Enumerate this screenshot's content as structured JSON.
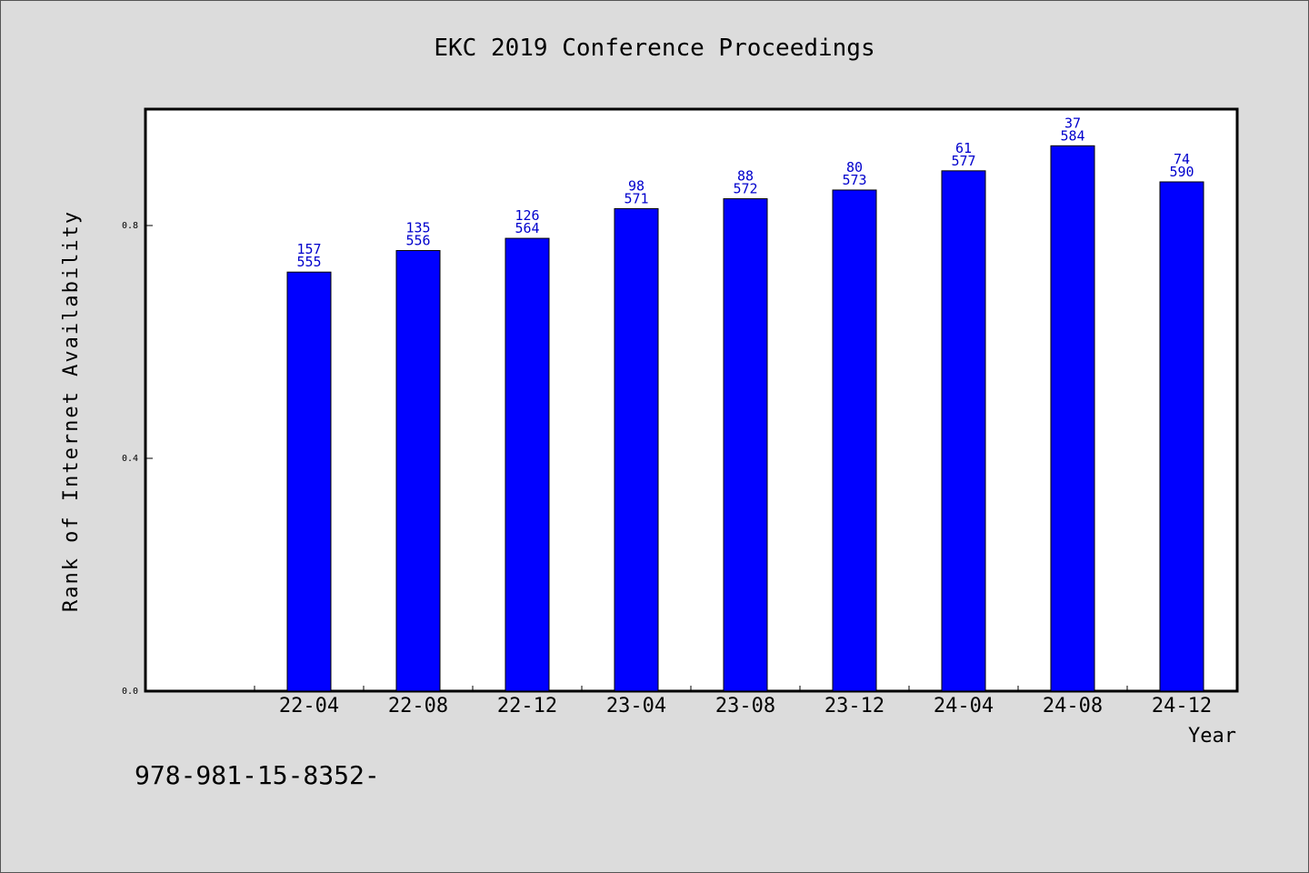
{
  "footer_text": "978-981-15-8352-",
  "chart_data": {
    "type": "bar",
    "title": "EKC 2019 Conference Proceedings",
    "xlabel": "Year",
    "ylabel": "Rank of Internet Availability",
    "ylim": [
      0,
      1.0
    ],
    "yticks": [
      0.0,
      0.4,
      0.8
    ],
    "ytick_labels": [
      "0.0",
      "0.4",
      "0.8"
    ],
    "grid": false,
    "bar_color": "#0000ff",
    "label_color": "#0000cc",
    "categories": [
      "22-04",
      "22-08",
      "22-12",
      "23-04",
      "23-08",
      "23-12",
      "24-04",
      "24-08",
      "24-12"
    ],
    "values": [
      0.72,
      0.757,
      0.778,
      0.829,
      0.846,
      0.861,
      0.894,
      0.937,
      0.875
    ],
    "labels_top": [
      "157",
      "135",
      "126",
      "98",
      "88",
      "80",
      "61",
      "37",
      "74"
    ],
    "labels_bottom": [
      "555",
      "556",
      "564",
      "571",
      "572",
      "573",
      "577",
      "584",
      "590"
    ]
  }
}
